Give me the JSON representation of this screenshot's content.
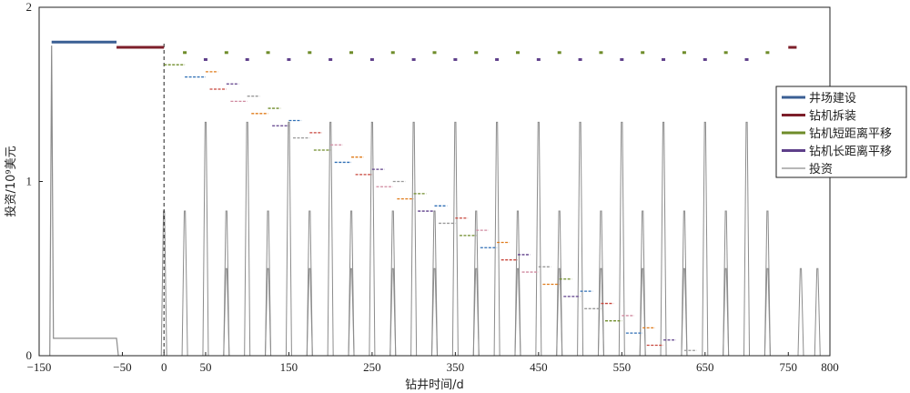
{
  "chart_data": {
    "type": "line",
    "xlabel": "钻井时间/d",
    "ylabel": "投资/10⁹美元",
    "xlim": [
      -150,
      800
    ],
    "ylim": [
      0,
      2
    ],
    "xticks": [
      "−150",
      "−50",
      "50",
      "150",
      "250",
      "350",
      "450",
      "550",
      "650",
      "750"
    ],
    "xtick_values": [
      -150,
      -50,
      50,
      150,
      250,
      350,
      450,
      550,
      650,
      750
    ],
    "extra_xtick_labels": [
      {
        "label": "0",
        "value": 0
      },
      {
        "label": "800",
        "value": 800
      }
    ],
    "yticks": [
      "0",
      "1",
      "2"
    ],
    "ytick_values": [
      0,
      1,
      2
    ],
    "grid": false,
    "legend_position": "right",
    "vline_dashed": 0,
    "series": [
      {
        "name": "井场建设",
        "color": "#3a5f94",
        "segments": [
          [
            -135,
            -57,
            1.8
          ]
        ]
      },
      {
        "name": "钻机拆装",
        "color": "#7d1f2a",
        "segments": [
          [
            -57,
            0,
            1.77
          ],
          [
            750,
            760,
            1.77
          ]
        ]
      },
      {
        "name": "钻机短距离平移",
        "color": "#6f8c2a",
        "dots_x": [
          25,
          75,
          125,
          175,
          225,
          275,
          325,
          375,
          425,
          475,
          525,
          575,
          625,
          675,
          725
        ],
        "dots_y": 1.74
      },
      {
        "name": "钻机长距离平移",
        "color": "#5e3f8a",
        "dots_x": [
          50,
          100,
          150,
          200,
          250,
          300,
          350,
          400,
          450,
          500,
          550,
          600,
          650,
          700
        ],
        "dots_y": 1.7
      },
      {
        "name": "投资",
        "color": "#8c8c8c",
        "baseline": {
          "x_start": -135,
          "x_end": -57,
          "value": 0.1,
          "start_peak": 1.78
        },
        "spikes": [
          {
            "x": 0,
            "y": 0.83
          },
          {
            "x": 25,
            "y": 0.83
          },
          {
            "x": 50,
            "y": 1.34
          },
          {
            "x": 75,
            "y": 0.5
          },
          {
            "x": 75,
            "y": 0.83
          },
          {
            "x": 100,
            "y": 1.34
          },
          {
            "x": 125,
            "y": 0.5
          },
          {
            "x": 125,
            "y": 0.83
          },
          {
            "x": 150,
            "y": 1.34
          },
          {
            "x": 175,
            "y": 0.5
          },
          {
            "x": 175,
            "y": 0.83
          },
          {
            "x": 200,
            "y": 1.34
          },
          {
            "x": 225,
            "y": 0.5
          },
          {
            "x": 225,
            "y": 0.83
          },
          {
            "x": 250,
            "y": 1.34
          },
          {
            "x": 275,
            "y": 0.5
          },
          {
            "x": 275,
            "y": 0.83
          },
          {
            "x": 300,
            "y": 1.34
          },
          {
            "x": 325,
            "y": 0.5
          },
          {
            "x": 325,
            "y": 0.83
          },
          {
            "x": 350,
            "y": 1.34
          },
          {
            "x": 375,
            "y": 0.5
          },
          {
            "x": 375,
            "y": 0.83
          },
          {
            "x": 400,
            "y": 1.34
          },
          {
            "x": 425,
            "y": 0.5
          },
          {
            "x": 425,
            "y": 0.83
          },
          {
            "x": 450,
            "y": 1.34
          },
          {
            "x": 475,
            "y": 0.5
          },
          {
            "x": 475,
            "y": 0.83
          },
          {
            "x": 500,
            "y": 1.34
          },
          {
            "x": 525,
            "y": 0.5
          },
          {
            "x": 525,
            "y": 0.83
          },
          {
            "x": 550,
            "y": 1.34
          },
          {
            "x": 575,
            "y": 0.5
          },
          {
            "x": 575,
            "y": 0.83
          },
          {
            "x": 600,
            "y": 1.34
          },
          {
            "x": 625,
            "y": 0.5
          },
          {
            "x": 625,
            "y": 0.83
          },
          {
            "x": 650,
            "y": 1.34
          },
          {
            "x": 675,
            "y": 0.5
          },
          {
            "x": 675,
            "y": 0.83
          },
          {
            "x": 700,
            "y": 1.34
          },
          {
            "x": 725,
            "y": 0.5
          },
          {
            "x": 725,
            "y": 0.83
          },
          {
            "x": 765,
            "y": 0.5
          },
          {
            "x": 785,
            "y": 0.5
          }
        ]
      }
    ],
    "staircase_dashes": {
      "colors": [
        "#6f8c2a",
        "#e07b1a",
        "#2f6fb5",
        "#5e3f8a",
        "#c8453b",
        "#999999",
        "#d08aa0"
      ],
      "items": [
        {
          "x0": 0,
          "x1": 25,
          "y": 1.67
        },
        {
          "x0": 50,
          "x1": 65,
          "y": 1.63
        },
        {
          "x0": 25,
          "x1": 50,
          "y": 1.6
        },
        {
          "x0": 75,
          "x1": 90,
          "y": 1.56
        },
        {
          "x0": 55,
          "x1": 75,
          "y": 1.53
        },
        {
          "x0": 100,
          "x1": 115,
          "y": 1.49
        },
        {
          "x0": 80,
          "x1": 100,
          "y": 1.46
        },
        {
          "x0": 125,
          "x1": 140,
          "y": 1.42
        },
        {
          "x0": 105,
          "x1": 125,
          "y": 1.39
        },
        {
          "x0": 150,
          "x1": 165,
          "y": 1.35
        },
        {
          "x0": 130,
          "x1": 150,
          "y": 1.32
        },
        {
          "x0": 175,
          "x1": 190,
          "y": 1.28
        },
        {
          "x0": 155,
          "x1": 175,
          "y": 1.25
        },
        {
          "x0": 200,
          "x1": 215,
          "y": 1.21
        },
        {
          "x0": 180,
          "x1": 200,
          "y": 1.18
        },
        {
          "x0": 225,
          "x1": 240,
          "y": 1.14
        },
        {
          "x0": 205,
          "x1": 225,
          "y": 1.11
        },
        {
          "x0": 250,
          "x1": 265,
          "y": 1.07
        },
        {
          "x0": 230,
          "x1": 250,
          "y": 1.04
        },
        {
          "x0": 275,
          "x1": 290,
          "y": 1.0
        },
        {
          "x0": 255,
          "x1": 275,
          "y": 0.97
        },
        {
          "x0": 300,
          "x1": 315,
          "y": 0.93
        },
        {
          "x0": 280,
          "x1": 300,
          "y": 0.9
        },
        {
          "x0": 325,
          "x1": 340,
          "y": 0.86
        },
        {
          "x0": 305,
          "x1": 325,
          "y": 0.83
        },
        {
          "x0": 350,
          "x1": 365,
          "y": 0.79
        },
        {
          "x0": 330,
          "x1": 350,
          "y": 0.76
        },
        {
          "x0": 375,
          "x1": 390,
          "y": 0.72
        },
        {
          "x0": 355,
          "x1": 375,
          "y": 0.69
        },
        {
          "x0": 400,
          "x1": 415,
          "y": 0.65
        },
        {
          "x0": 380,
          "x1": 400,
          "y": 0.62
        },
        {
          "x0": 425,
          "x1": 440,
          "y": 0.58
        },
        {
          "x0": 405,
          "x1": 425,
          "y": 0.55
        },
        {
          "x0": 450,
          "x1": 465,
          "y": 0.51
        },
        {
          "x0": 430,
          "x1": 450,
          "y": 0.48
        },
        {
          "x0": 475,
          "x1": 490,
          "y": 0.44
        },
        {
          "x0": 455,
          "x1": 475,
          "y": 0.41
        },
        {
          "x0": 500,
          "x1": 515,
          "y": 0.37
        },
        {
          "x0": 480,
          "x1": 500,
          "y": 0.34
        },
        {
          "x0": 525,
          "x1": 540,
          "y": 0.3
        },
        {
          "x0": 505,
          "x1": 525,
          "y": 0.27
        },
        {
          "x0": 550,
          "x1": 565,
          "y": 0.23
        },
        {
          "x0": 530,
          "x1": 550,
          "y": 0.2
        },
        {
          "x0": 575,
          "x1": 590,
          "y": 0.16
        },
        {
          "x0": 555,
          "x1": 575,
          "y": 0.13
        },
        {
          "x0": 600,
          "x1": 615,
          "y": 0.09
        },
        {
          "x0": 580,
          "x1": 600,
          "y": 0.06
        },
        {
          "x0": 625,
          "x1": 640,
          "y": 0.03
        }
      ]
    }
  }
}
